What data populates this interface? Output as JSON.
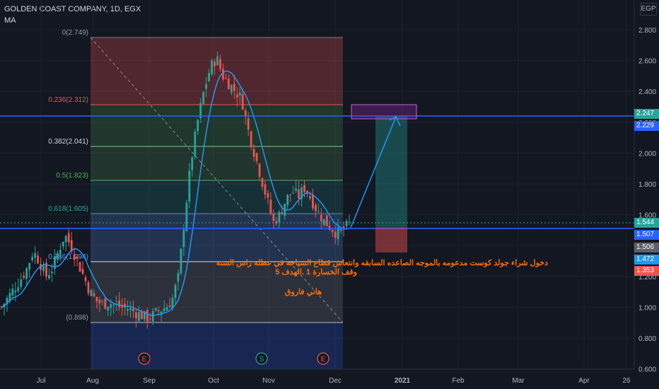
{
  "header": {
    "symbol": "GOLDEN COAST COMPANY, 1D, EGX",
    "indicator": "MA",
    "currency": "EGP"
  },
  "colors": {
    "bg": "#131722",
    "up": "#26a69a",
    "down": "#ef5350",
    "ma": "#2196f3",
    "hline": "#2962ff"
  },
  "chart_data": {
    "type": "candlestick",
    "ylim": [
      0.6,
      2.85
    ],
    "y_ticks": [
      "2.800",
      "2.600",
      "2.400",
      "2.200",
      "2.000",
      "1.800",
      "1.600",
      "1.400",
      "1.200",
      "1.000",
      "0.800",
      "0.600"
    ],
    "x_ticks": [
      "Jul",
      "Aug",
      "Sep",
      "Oct",
      "Nov",
      "Dec",
      "2021",
      "Feb",
      "Mar",
      "Apr",
      "26"
    ],
    "price_tags": [
      {
        "label": "2.247",
        "color": "#26a69a"
      },
      {
        "label": "2.229",
        "color": "#2962ff"
      },
      {
        "label": "1.544",
        "color": "#26a69a"
      },
      {
        "label": "1.507",
        "color": "#2962ff"
      },
      {
        "label": "1.506",
        "color": "#5d606b"
      },
      {
        "label": "1.472",
        "color": "#2196f3"
      },
      {
        "label": "1.353",
        "color": "#ef5350"
      }
    ],
    "fib_levels": [
      {
        "label": "0(2.749)",
        "value": 2.749
      },
      {
        "label": "0.236(2.312)",
        "value": 2.312
      },
      {
        "label": "0.382(2.041)",
        "value": 2.041
      },
      {
        "label": "0.5(1.823)",
        "value": 1.823
      },
      {
        "label": "0.618(1.605)",
        "value": 1.605
      },
      {
        "label": "0.786(1.294)",
        "value": 1.294
      },
      {
        "label": "(0.898)",
        "value": 0.898
      }
    ],
    "horizontal_lines": [
      2.229,
      1.507
    ],
    "events": [
      "E",
      "S",
      "E"
    ],
    "close_path": [
      1.0,
      1.06,
      1.12,
      1.18,
      1.25,
      1.36,
      1.3,
      1.2,
      1.25,
      1.36,
      1.47,
      1.4,
      1.3,
      1.2,
      1.1,
      1.04,
      1.02,
      1.03,
      1.01,
      1.0,
      0.99,
      0.97,
      0.95,
      0.93,
      0.95,
      0.98,
      1.0,
      1.05,
      1.2,
      1.6,
      1.95,
      2.2,
      2.4,
      2.55,
      2.62,
      2.5,
      2.45,
      2.4,
      2.35,
      2.15,
      2.0,
      1.85,
      1.7,
      1.55,
      1.6,
      1.7,
      1.75,
      1.72,
      1.78,
      1.7,
      1.62,
      1.56,
      1.52,
      1.48,
      1.5,
      1.54
    ],
    "annotations": [
      "دخول شراء جولد كوست  مدعومه بالموجه الصاعده السابقه وانتعاش قطاع السياحه في عطله راس السنه",
      "وقف الخسارة 1 .الهدف 5",
      "هاني فاروق"
    ]
  }
}
